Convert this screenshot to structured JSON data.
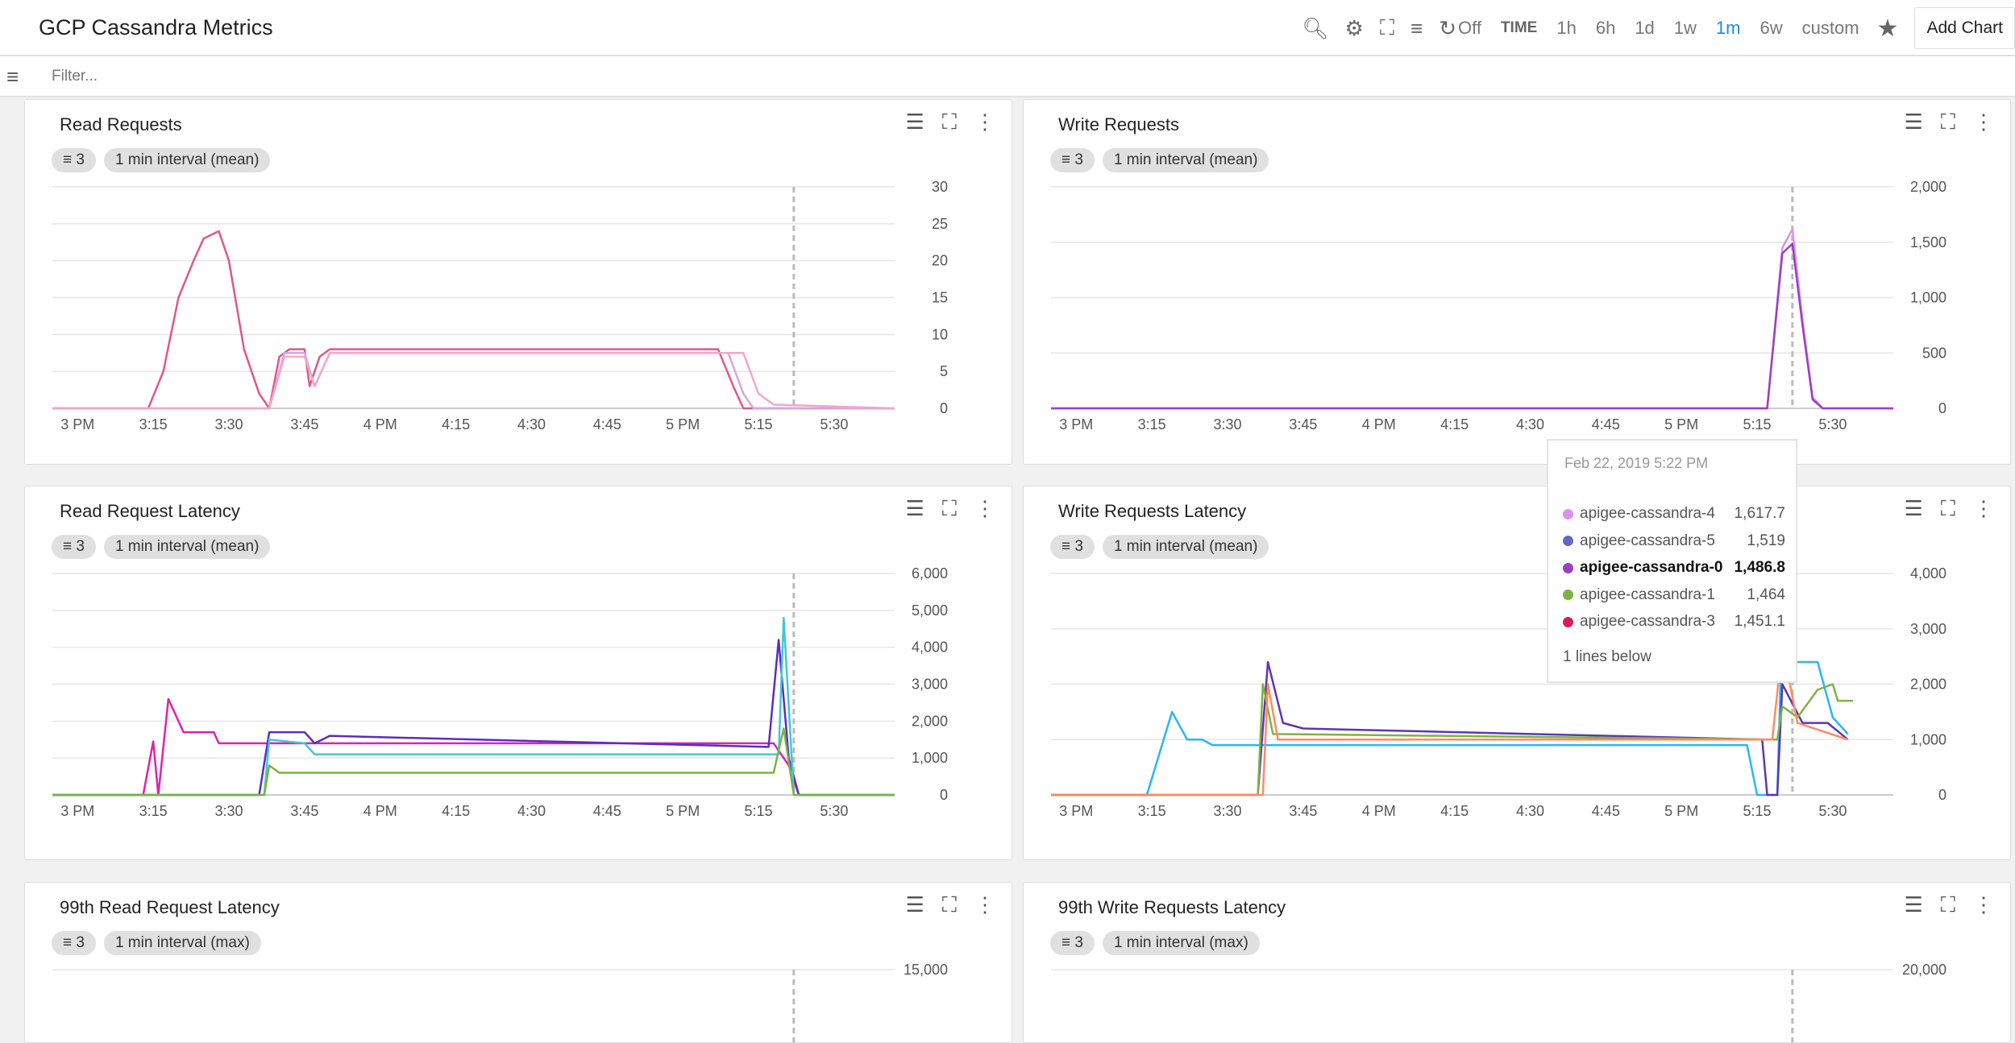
{
  "header": {
    "title": "GCP Cassandra Metrics",
    "refresh_label": "Off",
    "time_label": "TIME",
    "ranges": [
      "1h",
      "6h",
      "1d",
      "1w",
      "1m",
      "6w",
      "custom"
    ],
    "selected_range": "1m",
    "add_chart": "Add Chart",
    "accent": "#1e88e5"
  },
  "filter": {
    "placeholder": "Filter..."
  },
  "x_ticks": [
    "3 PM",
    "3:15",
    "3:30",
    "3:45",
    "4 PM",
    "4:15",
    "4:30",
    "4:45",
    "5 PM",
    "5:15",
    "5:30"
  ],
  "cursor_time": "5:22",
  "charts": [
    {
      "title": "Read Requests",
      "filter_count": "3",
      "interval": "1 min interval (mean)",
      "ylim": [
        0,
        30
      ],
      "y_ticks": [
        "0",
        "5",
        "10",
        "15",
        "20",
        "25",
        "30"
      ],
      "show_x": true,
      "series": [
        {
          "color": "#e0578a",
          "points": [
            [
              "2:55",
              0
            ],
            [
              "3:14",
              0
            ],
            [
              "3:17",
              5
            ],
            [
              "3:20",
              15
            ],
            [
              "3:23",
              20
            ],
            [
              "3:25",
              23
            ],
            [
              "3:28",
              24
            ],
            [
              "3:30",
              20
            ],
            [
              "3:33",
              8
            ],
            [
              "3:36",
              2
            ],
            [
              "3:38",
              0
            ],
            [
              "3:40",
              7
            ],
            [
              "3:42",
              8
            ],
            [
              "3:45",
              8
            ],
            [
              "3:46",
              3
            ],
            [
              "3:48",
              7
            ],
            [
              "3:50",
              8
            ],
            [
              "5:07",
              8
            ],
            [
              "5:10",
              3
            ],
            [
              "5:12",
              0
            ],
            [
              "5:42",
              0
            ]
          ]
        },
        {
          "color": "#d4a6e6",
          "points": [
            [
              "2:55",
              0
            ],
            [
              "3:38",
              0
            ],
            [
              "3:41",
              7.5
            ],
            [
              "3:45",
              7.5
            ],
            [
              "3:47",
              3
            ],
            [
              "3:50",
              7.5
            ],
            [
              "5:09",
              7.5
            ],
            [
              "5:12",
              2
            ],
            [
              "5:14",
              0
            ],
            [
              "5:42",
              0
            ]
          ]
        },
        {
          "color": "#f0a8c8",
          "points": [
            [
              "2:55",
              0
            ],
            [
              "3:38",
              0
            ],
            [
              "3:41",
              7
            ],
            [
              "3:45",
              7
            ],
            [
              "3:47",
              3
            ],
            [
              "3:50",
              7.5
            ],
            [
              "5:12",
              7.5
            ],
            [
              "5:15",
              2
            ],
            [
              "5:18",
              0.5
            ],
            [
              "5:42",
              0
            ]
          ]
        }
      ]
    },
    {
      "title": "Write Requests",
      "filter_count": "3",
      "interval": "1 min interval (mean)",
      "ylim": [
        0,
        2000
      ],
      "y_ticks": [
        "0",
        "500",
        "1,000",
        "1,500",
        "2,000"
      ],
      "show_x": true,
      "series": [
        {
          "name": "apigee-cassandra-4",
          "color": "#e08ef0",
          "points": [
            [
              "2:55",
              0
            ],
            [
              "5:17",
              0
            ],
            [
              "5:20",
              1450
            ],
            [
              "5:22",
              1617.7
            ],
            [
              "5:24",
              800
            ],
            [
              "5:26",
              100
            ],
            [
              "5:28",
              0
            ],
            [
              "5:42",
              0
            ]
          ]
        },
        {
          "name": "apigee-cassandra-0",
          "color": "#9c3fc0",
          "points": [
            [
              "2:55",
              0
            ],
            [
              "5:17",
              0
            ],
            [
              "5:20",
              1400
            ],
            [
              "5:22",
              1486.8
            ],
            [
              "5:24",
              750
            ],
            [
              "5:26",
              80
            ],
            [
              "5:28",
              0
            ],
            [
              "5:42",
              0
            ]
          ]
        }
      ]
    },
    {
      "title": "Read Request Latency",
      "filter_count": "3",
      "interval": "1 min interval (mean)",
      "ylim": [
        0,
        6000
      ],
      "y_ticks": [
        "0",
        "1,000",
        "2,000",
        "3,000",
        "4,000",
        "5,000",
        "6,000"
      ],
      "show_x": true,
      "series": [
        {
          "color": "#e020b0",
          "points": [
            [
              "2:55",
              0
            ],
            [
              "3:13",
              0
            ],
            [
              "3:15",
              1450
            ],
            [
              "3:16",
              0
            ],
            [
              "3:18",
              2600
            ],
            [
              "3:21",
              1700
            ],
            [
              "3:27",
              1700
            ],
            [
              "3:28",
              1400
            ],
            [
              "5:18",
              1400
            ],
            [
              "5:21",
              800
            ],
            [
              "5:23",
              0
            ],
            [
              "5:42",
              0
            ]
          ]
        },
        {
          "color": "#5a2ec0",
          "points": [
            [
              "2:55",
              0
            ],
            [
              "3:36",
              0
            ],
            [
              "3:38",
              1700
            ],
            [
              "3:45",
              1700
            ],
            [
              "3:47",
              1400
            ],
            [
              "3:50",
              1600
            ],
            [
              "5:17",
              1300
            ],
            [
              "5:19",
              4200
            ],
            [
              "5:21",
              1000
            ],
            [
              "5:23",
              0
            ],
            [
              "5:42",
              0
            ]
          ]
        },
        {
          "color": "#40c8d8",
          "points": [
            [
              "2:55",
              0
            ],
            [
              "3:37",
              0
            ],
            [
              "3:38",
              1500
            ],
            [
              "3:45",
              1400
            ],
            [
              "3:47",
              1100
            ],
            [
              "5:19",
              1100
            ],
            [
              "5:20",
              4800
            ],
            [
              "5:22",
              0
            ],
            [
              "5:42",
              0
            ]
          ]
        },
        {
          "color": "#7cb342",
          "points": [
            [
              "2:55",
              0
            ],
            [
              "3:37",
              0
            ],
            [
              "3:38",
              800
            ],
            [
              "3:40",
              600
            ],
            [
              "5:18",
              600
            ],
            [
              "5:20",
              1800
            ],
            [
              "5:22",
              0
            ],
            [
              "5:42",
              0
            ]
          ]
        }
      ]
    },
    {
      "title": "Write Requests Latency",
      "filter_count": "3",
      "interval": "1 min interval (mean)",
      "ylim": [
        0,
        4000
      ],
      "y_ticks": [
        "0",
        "1,000",
        "2,000",
        "3,000",
        "4,000"
      ],
      "show_x": true,
      "series": [
        {
          "color": "#29b6f6",
          "points": [
            [
              "2:55",
              0
            ],
            [
              "3:14",
              0
            ],
            [
              "3:16",
              600
            ],
            [
              "3:19",
              1500
            ],
            [
              "3:22",
              1000
            ],
            [
              "3:25",
              1000
            ],
            [
              "3:27",
              900
            ],
            [
              "5:13",
              900
            ],
            [
              "5:15",
              0
            ],
            [
              "5:19",
              0
            ],
            [
              "5:20",
              3200
            ],
            [
              "5:21",
              2400
            ],
            [
              "5:27",
              2400
            ],
            [
              "5:30",
              1400
            ],
            [
              "5:33",
              1100
            ]
          ]
        },
        {
          "color": "#5e35b1",
          "points": [
            [
              "2:55",
              0
            ],
            [
              "3:36",
              0
            ],
            [
              "3:38",
              2400
            ],
            [
              "3:41",
              1300
            ],
            [
              "3:45",
              1200
            ],
            [
              "5:16",
              1000
            ],
            [
              "5:17",
              0
            ],
            [
              "5:19",
              0
            ],
            [
              "5:20",
              2000
            ],
            [
              "5:24",
              1300
            ],
            [
              "5:29",
              1300
            ],
            [
              "5:33",
              1000
            ]
          ]
        },
        {
          "color": "#7cb342",
          "points": [
            [
              "2:55",
              0
            ],
            [
              "3:36",
              0
            ],
            [
              "3:37",
              2000
            ],
            [
              "3:39",
              1100
            ],
            [
              "5:19",
              1000
            ],
            [
              "5:20",
              1600
            ],
            [
              "5:23",
              1400
            ],
            [
              "5:27",
              1900
            ],
            [
              "5:30",
              2000
            ],
            [
              "5:31",
              1700
            ],
            [
              "5:34",
              1700
            ]
          ]
        },
        {
          "color": "#ff8a65",
          "points": [
            [
              "2:55",
              0
            ],
            [
              "3:37",
              0
            ],
            [
              "3:38",
              2000
            ],
            [
              "3:40",
              1000
            ],
            [
              "5:18",
              1000
            ],
            [
              "5:20",
              2700
            ],
            [
              "5:23",
              1300
            ],
            [
              "5:33",
              1000
            ]
          ]
        }
      ]
    },
    {
      "title": "99th Read Request Latency",
      "filter_count": "3",
      "interval": "1 min interval (max)",
      "ylim": [
        0,
        15000
      ],
      "y_ticks": [
        "15,000"
      ],
      "show_x": false,
      "series": []
    },
    {
      "title": "99th Write Requests Latency",
      "filter_count": "3",
      "interval": "1 min interval (max)",
      "ylim": [
        0,
        20000
      ],
      "y_ticks": [
        "20,000"
      ],
      "show_x": false,
      "series": []
    }
  ],
  "tooltip": {
    "date": "Feb 22, 2019 5:22 PM",
    "rows": [
      {
        "name": "apigee-cassandra-4",
        "value": "1,617.7",
        "color": "#e08ef0"
      },
      {
        "name": "apigee-cassandra-5",
        "value": "1,519",
        "color": "#5c6bc0"
      },
      {
        "name": "apigee-cassandra-0",
        "value": "1,486.8",
        "color": "#9c3fc0",
        "bold": true
      },
      {
        "name": "apigee-cassandra-1",
        "value": "1,464",
        "color": "#7cb342"
      },
      {
        "name": "apigee-cassandra-3",
        "value": "1,451.1",
        "color": "#d81b60"
      }
    ],
    "below": "1 lines below"
  }
}
